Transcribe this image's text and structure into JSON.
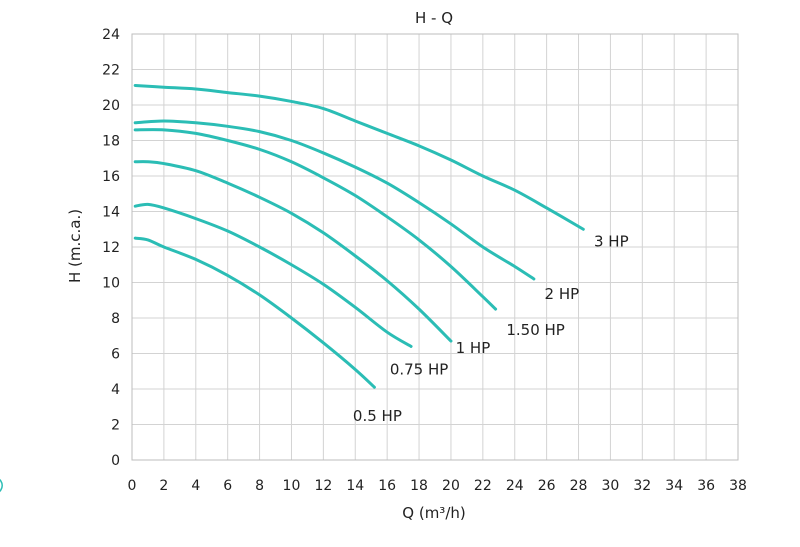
{
  "colors": {
    "series": "#2bbdb5",
    "grid": "#d3d3d3",
    "text": "#222222"
  },
  "chart_data": {
    "type": "line",
    "title": "H - Q",
    "xlabel": "Q (m³/h)",
    "ylabel": "H (m.c.a.)",
    "xlim": [
      0,
      38
    ],
    "ylim": [
      0,
      24
    ],
    "xticks": [
      0,
      2,
      4,
      6,
      8,
      10,
      12,
      14,
      16,
      18,
      20,
      22,
      24,
      26,
      28,
      30,
      32,
      34,
      36,
      38
    ],
    "yticks": [
      0,
      2,
      4,
      6,
      8,
      10,
      12,
      14,
      16,
      18,
      20,
      22,
      24
    ],
    "grid": true,
    "legend": "none",
    "series": [
      {
        "name": "0.5 HP",
        "x": [
          0.2,
          1,
          2,
          4,
          6,
          8,
          10,
          12,
          14,
          15.2
        ],
        "y": [
          12.5,
          12.4,
          12.0,
          11.3,
          10.4,
          9.3,
          8.0,
          6.6,
          5.1,
          4.1
        ]
      },
      {
        "name": "0.75 HP",
        "x": [
          0.2,
          1,
          2,
          4,
          6,
          8,
          10,
          12,
          14,
          16,
          17.5
        ],
        "y": [
          14.3,
          14.4,
          14.2,
          13.6,
          12.9,
          12.0,
          11.0,
          9.9,
          8.6,
          7.2,
          6.4
        ]
      },
      {
        "name": "1 HP",
        "x": [
          0.2,
          1,
          2,
          4,
          6,
          8,
          10,
          12,
          14,
          16,
          18,
          20
        ],
        "y": [
          16.8,
          16.8,
          16.7,
          16.3,
          15.6,
          14.8,
          13.9,
          12.8,
          11.5,
          10.1,
          8.5,
          6.7
        ]
      },
      {
        "name": "1.50 HP",
        "x": [
          0.2,
          2,
          4,
          6,
          8,
          10,
          12,
          14,
          16,
          18,
          20,
          22,
          22.8
        ],
        "y": [
          18.6,
          18.6,
          18.4,
          18.0,
          17.5,
          16.8,
          15.9,
          14.9,
          13.7,
          12.4,
          10.9,
          9.2,
          8.5
        ]
      },
      {
        "name": "2 HP",
        "x": [
          0.2,
          2,
          4,
          6,
          8,
          10,
          12,
          14,
          16,
          18,
          20,
          22,
          24,
          25.2
        ],
        "y": [
          19.0,
          19.1,
          19.0,
          18.8,
          18.5,
          18.0,
          17.3,
          16.5,
          15.6,
          14.5,
          13.3,
          12.0,
          10.9,
          10.2
        ]
      },
      {
        "name": "3 HP",
        "x": [
          0.2,
          2,
          4,
          6,
          8,
          10,
          12,
          14,
          16,
          18,
          20,
          22,
          24,
          26,
          28.3
        ],
        "y": [
          21.1,
          21.0,
          20.9,
          20.7,
          20.5,
          20.2,
          19.8,
          19.1,
          18.4,
          17.7,
          16.9,
          16.0,
          15.2,
          14.2,
          13.0
        ]
      }
    ]
  }
}
